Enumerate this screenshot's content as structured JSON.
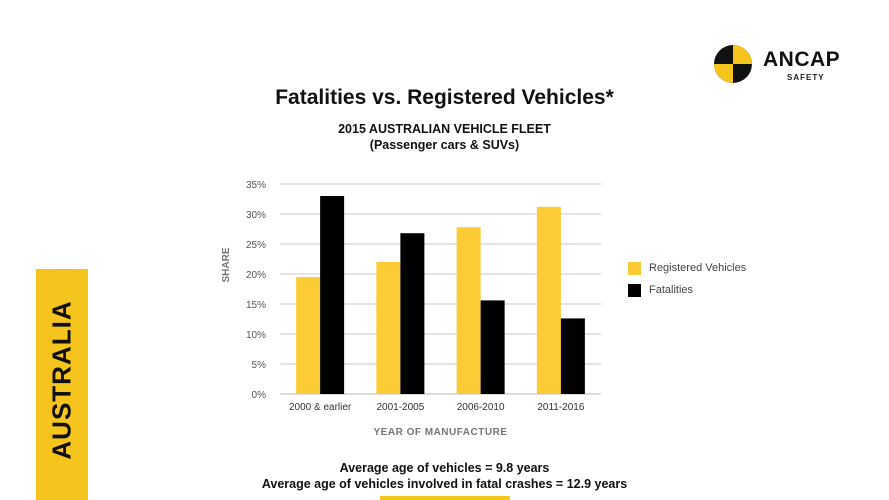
{
  "brand": {
    "name": "ANCAP",
    "sub": "SAFETY",
    "side_label": "AUSTRALIA",
    "accent_color": "#f5c41d"
  },
  "chart_data": {
    "type": "bar",
    "title": "Fatalities vs. Registered Vehicles*",
    "subtitle_lines": [
      "2015 AUSTRALIAN VEHICLE FLEET",
      "(Passenger cars & SUVs)"
    ],
    "xlabel": "YEAR OF MANUFACTURE",
    "ylabel": "SHARE",
    "categories": [
      "2000 & earlier",
      "2001-2005",
      "2006-2010",
      "2011-2016"
    ],
    "ylim": [
      0,
      35
    ],
    "yticks": [
      "0%",
      "5%",
      "10%",
      "15%",
      "20%",
      "25%",
      "30%",
      "35%"
    ],
    "grid": true,
    "legend_position": "right",
    "series": [
      {
        "name": "Registered Vehicles",
        "color": "#fccb35",
        "values": [
          19.5,
          22.0,
          27.8,
          31.2
        ]
      },
      {
        "name": "Fatalities",
        "color": "#000000",
        "values": [
          33.0,
          26.8,
          15.6,
          12.6
        ]
      }
    ]
  },
  "notes": {
    "line1": "Average age of vehicles = 9.8 years",
    "line2": "Average age of vehicles involved in fatal crashes = 12.9 years"
  }
}
